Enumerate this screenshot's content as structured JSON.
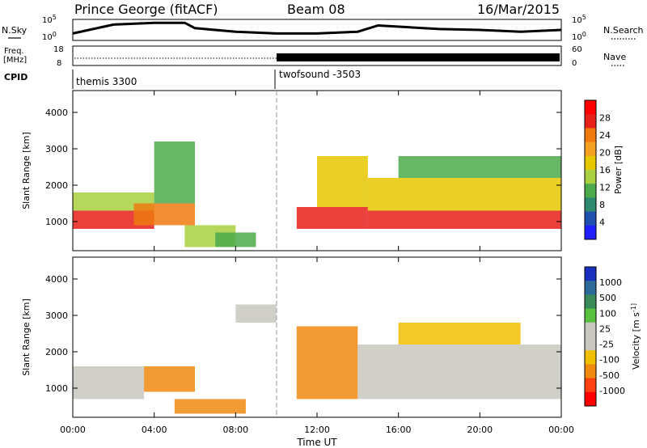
{
  "header": {
    "station": "Prince George (fitACF)",
    "beam": "Beam 08",
    "date": "16/Mar/2015"
  },
  "strip_labels": {
    "nsky": "N.Sky",
    "freq_line1": "Freq.",
    "freq_line2": "[MHz]",
    "cpid": "CPID",
    "nsearch": "N.Search",
    "nave": "Nave"
  },
  "strip_ticks": {
    "nsky_left": [
      "10^5",
      "10^0"
    ],
    "nsky_right": [
      "10^5",
      "10^0"
    ],
    "freq_left": [
      "18",
      "8"
    ],
    "nave_right": [
      "60",
      "0"
    ]
  },
  "cpid_segments": [
    {
      "label": "themis 3300",
      "start_hour": 0
    },
    {
      "label": "twofsound -3503",
      "start_hour": 10
    }
  ],
  "colorbars": {
    "power": {
      "label": "Power [dB]",
      "ticks": [
        "28",
        "24",
        "20",
        "16",
        "12",
        "8",
        "4"
      ],
      "colors": [
        "#ff0000",
        "#e8201a",
        "#f07a10",
        "#f4a020",
        "#e6c800",
        "#a8d040",
        "#4caa4c",
        "#2e8a6e",
        "#2050b0",
        "#2020ff"
      ]
    },
    "velocity": {
      "label": "Velocity [m s^-1]",
      "ticks": [
        "1000",
        "500",
        "100",
        "25",
        "-25",
        "-100",
        "-500",
        "-1000"
      ],
      "colors": [
        "#1a2fc0",
        "#2e6a9a",
        "#3a8a5a",
        "#5ac040",
        "#c8c8c0",
        "#c8c8c0",
        "#f0c000",
        "#f08a10",
        "#ff4010",
        "#ff0000"
      ]
    }
  },
  "chart_data": [
    {
      "type": "heatmap",
      "panel": "power",
      "ylabel": "Slant Range [km]",
      "ylim": [
        200,
        4600
      ],
      "yticks": [
        1000,
        2000,
        3000,
        4000
      ],
      "xlim": [
        0,
        24
      ],
      "cpid_change_hour": 10,
      "clim": [
        0,
        30
      ],
      "regions": [
        {
          "t0": 0.0,
          "t1": 4.0,
          "r0": 800,
          "r1": 1300,
          "value": 26
        },
        {
          "t0": 0.0,
          "t1": 4.0,
          "r0": 1300,
          "r1": 1800,
          "value": 12
        },
        {
          "t0": 3.0,
          "t1": 6.0,
          "r0": 900,
          "r1": 1500,
          "value": 22
        },
        {
          "t0": 4.0,
          "t1": 6.0,
          "r0": 1500,
          "r1": 3200,
          "value": 9
        },
        {
          "t0": 5.5,
          "t1": 8.0,
          "r0": 300,
          "r1": 900,
          "value": 12
        },
        {
          "t0": 7.0,
          "t1": 9.0,
          "r0": 300,
          "r1": 700,
          "value": 10
        },
        {
          "t0": 11.0,
          "t1": 14.5,
          "r0": 800,
          "r1": 1400,
          "value": 27
        },
        {
          "t0": 12.0,
          "t1": 14.5,
          "r0": 1400,
          "r1": 2800,
          "value": 18
        },
        {
          "t0": 14.5,
          "t1": 24.0,
          "r0": 800,
          "r1": 1300,
          "value": 26
        },
        {
          "t0": 14.5,
          "t1": 24.0,
          "r0": 1300,
          "r1": 2200,
          "value": 16
        },
        {
          "t0": 16.0,
          "t1": 24.0,
          "r0": 2200,
          "r1": 2800,
          "value": 10
        }
      ]
    },
    {
      "type": "heatmap",
      "panel": "velocity",
      "ylabel": "Slant Range [km]",
      "ylim": [
        200,
        4600
      ],
      "yticks": [
        1000,
        2000,
        3000,
        4000
      ],
      "xlim": [
        0,
        24
      ],
      "xticks": [
        "00:00",
        "04:00",
        "08:00",
        "12:00",
        "16:00",
        "20:00",
        "00:00"
      ],
      "xlabel": "Time UT",
      "cpid_change_hour": 10,
      "clim": [
        -1000,
        1000
      ],
      "regions": [
        {
          "t0": 0.0,
          "t1": 3.5,
          "r0": 700,
          "r1": 1600,
          "value": 0
        },
        {
          "t0": 3.5,
          "t1": 6.0,
          "r0": 900,
          "r1": 1600,
          "value": -150
        },
        {
          "t0": 5.0,
          "t1": 8.5,
          "r0": 300,
          "r1": 700,
          "value": -200
        },
        {
          "t0": 8.0,
          "t1": 10.0,
          "r0": 2800,
          "r1": 3300,
          "value": 0
        },
        {
          "t0": 11.0,
          "t1": 14.0,
          "r0": 700,
          "r1": 2700,
          "value": -150
        },
        {
          "t0": 14.0,
          "t1": 24.0,
          "r0": 700,
          "r1": 2200,
          "value": 0
        },
        {
          "t0": 16.0,
          "t1": 22.0,
          "r0": 2200,
          "r1": 2800,
          "value": -100
        }
      ]
    },
    {
      "type": "line",
      "panel": "noise_sky_search",
      "xlim": [
        0,
        24
      ],
      "series": [
        {
          "values_hour": [
            0,
            2,
            4,
            5.5,
            6,
            8,
            10,
            12,
            14,
            15,
            18,
            20,
            22,
            24
          ],
          "values_level": [
            0.3,
            0.8,
            0.9,
            0.9,
            0.6,
            0.4,
            0.3,
            0.3,
            0.4,
            0.75,
            0.55,
            0.5,
            0.4,
            0.5
          ]
        }
      ]
    },
    {
      "type": "line",
      "panel": "freq_nave",
      "xlim": [
        0,
        24
      ],
      "freq_mhz": [
        {
          "hour": 0,
          "value": 10.5
        },
        {
          "hour": 10,
          "value": 10.5
        },
        {
          "hour": 24,
          "value": 10.5
        }
      ],
      "nave_band_start_hour": 10
    }
  ]
}
